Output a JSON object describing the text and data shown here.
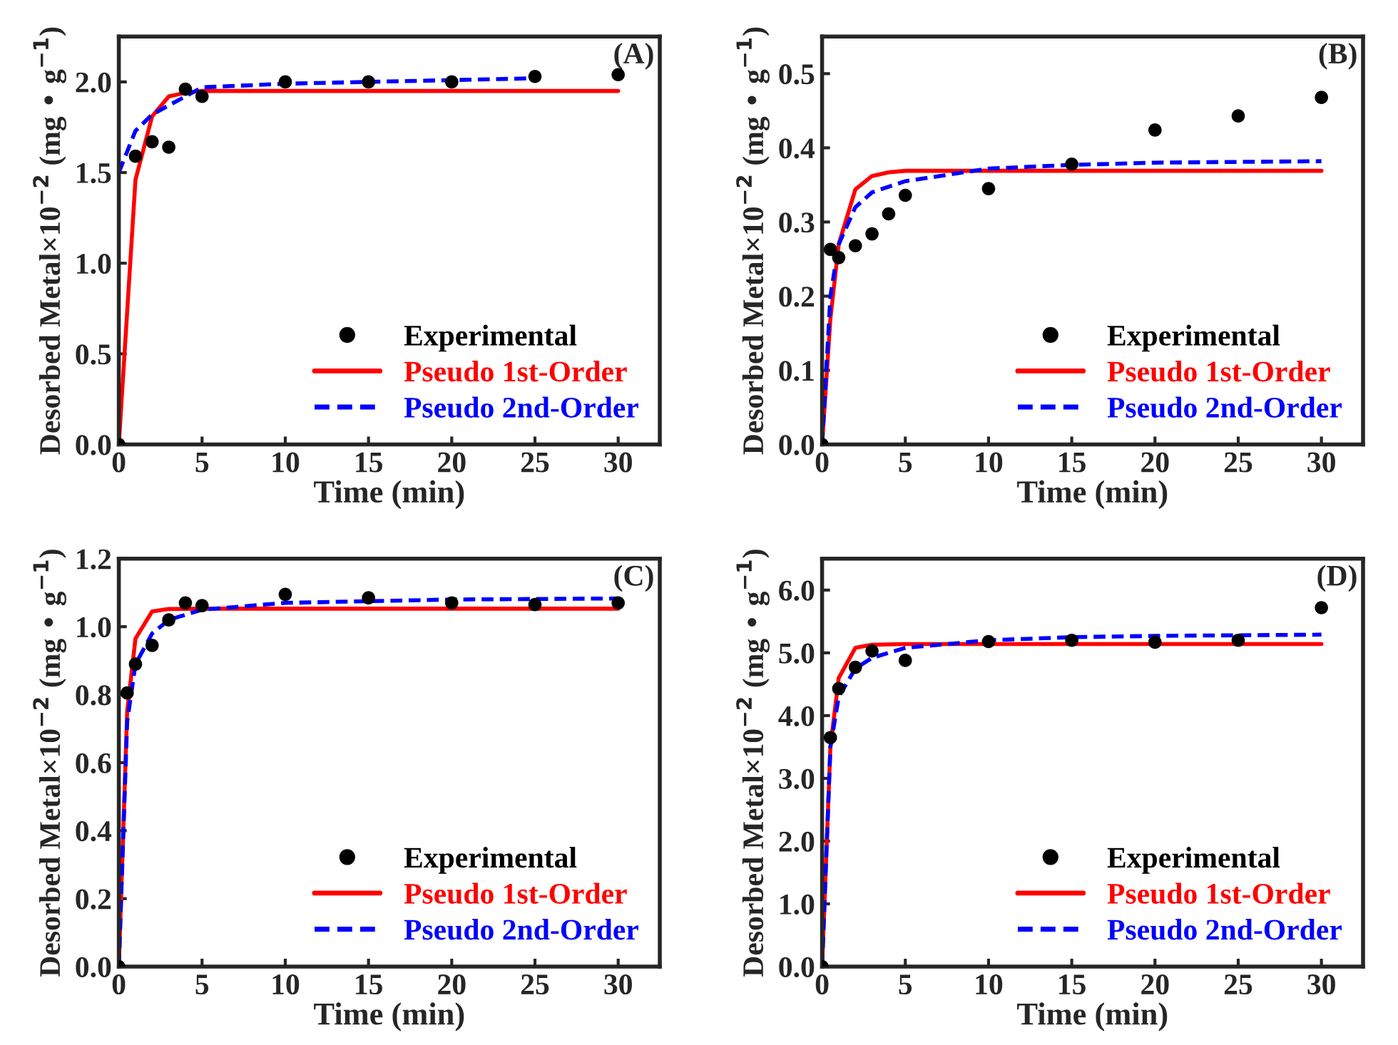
{
  "chart_data": [
    {
      "type": "scatter",
      "title": "(A)",
      "xlabel": "Time (min)",
      "ylabel": "Desorbed Metal×10$^{−2}$ (mg • g$^{−1}$)",
      "xlim": [
        0,
        32.5
      ],
      "xticks": [
        0,
        5,
        10,
        15,
        20,
        25,
        30
      ],
      "ylim": [
        0,
        2.25
      ],
      "yticks": [
        {
          "value": 0,
          "label": "0.0"
        },
        {
          "value": 0.5,
          "label": "0.5"
        },
        {
          "value": 1,
          "label": "1.0"
        },
        {
          "value": 1.5,
          "label": "1.5"
        },
        {
          "value": 2,
          "label": "2.0"
        }
      ],
      "legend": "bottom right",
      "grid": false,
      "series": [
        {
          "name": "Experimental",
          "marker": "circle",
          "color": "#000000",
          "x": [
            0,
            1,
            2,
            3,
            4,
            5,
            10,
            15,
            20,
            25,
            30
          ],
          "values": [
            0,
            1.59,
            1.67,
            1.64,
            1.96,
            1.92,
            2.0,
            2.0,
            2.0,
            2.03,
            2.04
          ]
        },
        {
          "name": "Pseudo 1st-Order",
          "type": "line",
          "line_style": "solid",
          "color": "#ff0000",
          "x": [
            0,
            1,
            2,
            3,
            4,
            5,
            30
          ],
          "values": [
            0,
            1.46,
            1.81,
            1.92,
            1.94,
            1.95,
            1.95
          ]
        },
        {
          "name": "Pseudo 2nd-Order",
          "type": "line",
          "line_style": "dashed",
          "color": "#0000ff",
          "x": [
            0,
            1,
            2,
            3,
            4,
            5,
            10,
            15,
            20,
            25
          ],
          "values": [
            1.5,
            1.73,
            1.82,
            1.87,
            1.92,
            1.97,
            1.99,
            2.0,
            2.01,
            2.02
          ]
        }
      ]
    },
    {
      "type": "scatter",
      "title": "(B)",
      "xlabel": "Time (min)",
      "ylabel": "Desorbed Metal×10$^{−2}$ (mg • g$^{−1}$)",
      "xlim": [
        0,
        32.5
      ],
      "xticks": [
        0,
        5,
        10,
        15,
        20,
        25,
        30
      ],
      "ylim": [
        0,
        0.55
      ],
      "yticks": [
        {
          "value": 0,
          "label": "0.0"
        },
        0.1,
        0.2,
        0.3,
        0.4,
        0.5
      ],
      "legend": "bottom right",
      "grid": false,
      "series": [
        {
          "name": "Experimental",
          "marker": "circle",
          "color": "#000000",
          "x": [
            0,
            0.5,
            1,
            2,
            3,
            4,
            5,
            10,
            15,
            20,
            25,
            30
          ],
          "values": [
            0,
            0.263,
            0.252,
            0.268,
            0.284,
            0.311,
            0.336,
            0.345,
            0.378,
            0.424,
            0.443,
            0.468
          ]
        },
        {
          "name": "Pseudo 1st-Order",
          "type": "line",
          "line_style": "solid",
          "color": "#ff0000",
          "x": [
            0,
            0.5,
            1,
            2,
            3,
            4,
            5,
            30
          ],
          "values": [
            0,
            0.17,
            0.27,
            0.344,
            0.362,
            0.367,
            0.369,
            0.369
          ]
        },
        {
          "name": "Pseudo 2nd-Order",
          "type": "line",
          "line_style": "dashed",
          "color": "#0000ff",
          "x": [
            0,
            0.5,
            1,
            2,
            3,
            5,
            10,
            15,
            20,
            30
          ],
          "values": [
            0,
            0.2,
            0.27,
            0.32,
            0.34,
            0.355,
            0.372,
            0.377,
            0.38,
            0.382
          ]
        }
      ]
    },
    {
      "type": "scatter",
      "title": "(C)",
      "xlabel": "Time (min)",
      "ylabel": "Desorbed Metal×10$^{−2}$ (mg • g$^{−1}$)",
      "xlim": [
        0,
        32.5
      ],
      "xticks": [
        0,
        5,
        10,
        15,
        20,
        25,
        30
      ],
      "ylim": [
        0,
        1.2
      ],
      "yticks": [
        {
          "value": 0,
          "label": "0.0"
        },
        0.2,
        0.4,
        0.6,
        0.8,
        {
          "value": 1,
          "label": "1.0"
        },
        1.2
      ],
      "legend": "bottom right",
      "grid": false,
      "series": [
        {
          "name": "Experimental",
          "marker": "circle",
          "color": "#000000",
          "x": [
            0,
            0.5,
            1,
            2,
            3,
            4,
            5,
            10,
            15,
            20,
            25,
            30
          ],
          "values": [
            0,
            0.805,
            0.89,
            0.945,
            1.02,
            1.07,
            1.062,
            1.095,
            1.085,
            1.07,
            1.065,
            1.07
          ]
        },
        {
          "name": "Pseudo 1st-Order",
          "type": "line",
          "line_style": "solid",
          "color": "#ff0000",
          "x": [
            0,
            0.5,
            1,
            2,
            3,
            5,
            30
          ],
          "values": [
            0,
            0.75,
            0.965,
            1.045,
            1.052,
            1.053,
            1.053
          ]
        },
        {
          "name": "Pseudo 2nd-Order",
          "type": "line",
          "line_style": "dashed",
          "color": "#0000ff",
          "x": [
            0,
            0.5,
            1,
            2,
            3,
            5,
            10,
            15,
            20,
            30
          ],
          "values": [
            0,
            0.72,
            0.89,
            0.98,
            1.02,
            1.05,
            1.07,
            1.075,
            1.08,
            1.083
          ]
        }
      ]
    },
    {
      "type": "scatter",
      "title": "(D)",
      "xlabel": "Time (min)",
      "ylabel": "Desorbed Metal×10$^{−2}$ (mg • g$^{−1}$)",
      "xlim": [
        0,
        32.5
      ],
      "xticks": [
        0,
        5,
        10,
        15,
        20,
        25,
        30
      ],
      "ylim": [
        0,
        6.5
      ],
      "yticks": [
        {
          "value": 0,
          "label": "0.0"
        },
        {
          "value": 1,
          "label": "1.0"
        },
        {
          "value": 2,
          "label": "2.0"
        },
        {
          "value": 3,
          "label": "3.0"
        },
        {
          "value": 4,
          "label": "4.0"
        },
        {
          "value": 5,
          "label": "5.0"
        },
        {
          "value": 6,
          "label": "6.0"
        }
      ],
      "legend": "bottom right",
      "grid": false,
      "series": [
        {
          "name": "Experimental",
          "marker": "circle",
          "color": "#000000",
          "x": [
            0,
            0.5,
            1,
            2,
            3,
            5,
            10,
            15,
            20,
            25,
            30
          ],
          "values": [
            0,
            3.65,
            4.43,
            4.77,
            5.03,
            4.88,
            5.18,
            5.2,
            5.17,
            5.2,
            5.72
          ]
        },
        {
          "name": "Pseudo 1st-Order",
          "type": "line",
          "line_style": "solid",
          "color": "#ff0000",
          "x": [
            0,
            0.5,
            1,
            2,
            3,
            5,
            30
          ],
          "values": [
            0,
            3.5,
            4.6,
            5.08,
            5.13,
            5.14,
            5.14
          ]
        },
        {
          "name": "Pseudo 2nd-Order",
          "type": "line",
          "line_style": "dashed",
          "color": "#0000ff",
          "x": [
            0,
            0.5,
            1,
            2,
            3,
            5,
            10,
            15,
            20,
            30
          ],
          "values": [
            0,
            3.5,
            4.3,
            4.75,
            4.92,
            5.08,
            5.2,
            5.25,
            5.27,
            5.29
          ]
        }
      ]
    }
  ]
}
